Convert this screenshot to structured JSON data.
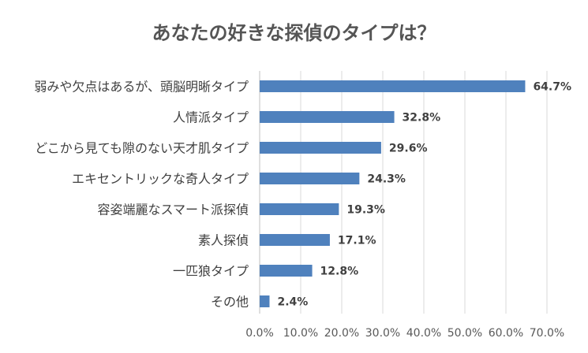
{
  "chart_data": {
    "type": "bar",
    "orientation": "horizontal",
    "title": "あなたの好きな探偵のタイプは？",
    "categories": [
      "弱みや欠点はあるが、頭脳明晰タイプ",
      "人情派タイプ",
      "どこから見ても隙のない天才肌タイプ",
      "エキセントリックな奇人タイプ",
      "容姿端麗なスマート派探偵",
      "素人探偵",
      "一匹狼タイプ",
      "その他"
    ],
    "values": [
      64.7,
      32.8,
      29.6,
      24.3,
      19.3,
      17.1,
      12.8,
      2.4
    ],
    "value_labels": [
      "64.7%",
      "32.8%",
      "29.6%",
      "24.3%",
      "19.3%",
      "17.1%",
      "12.8%",
      "2.4%"
    ],
    "xlim": [
      0,
      70
    ],
    "x_ticks": [
      0,
      10,
      20,
      30,
      40,
      50,
      60,
      70
    ],
    "x_tick_labels": [
      "0.0%",
      "10.0%",
      "20.0%",
      "30.0%",
      "40.0%",
      "50.0%",
      "60.0%",
      "70.0%"
    ],
    "grid": true,
    "bar_color": "#4f81bd",
    "grid_color": "#d9d9d9",
    "legend": false
  }
}
